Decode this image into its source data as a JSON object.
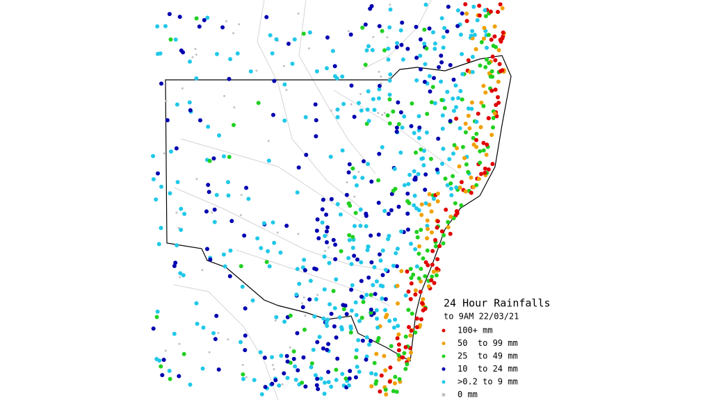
{
  "map": {
    "title": "24 Hour Rainfalls",
    "subtitle": "to 9AM 22/03/21",
    "legend": [
      {
        "label": "100+ mm",
        "color": "#e00000"
      },
      {
        "label": "50  to 99 mm",
        "color": "#f0a000"
      },
      {
        "label": "25  to 49 mm",
        "color": "#20d020"
      },
      {
        "label": "10  to 24 mm",
        "color": "#0000b0"
      },
      {
        ">label": null,
        "label": ">0.2 to 9 mm",
        "color": "#20c8e8"
      },
      {
        "label": "0 mm",
        "color": "#c0c0c0"
      }
    ]
  }
}
